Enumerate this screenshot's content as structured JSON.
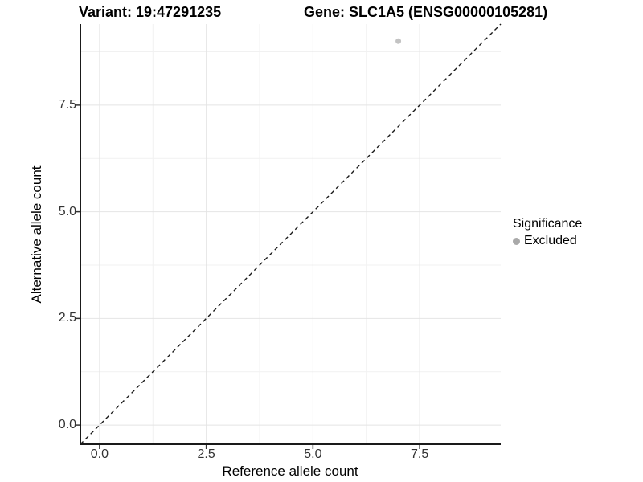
{
  "titles": {
    "variant": "Variant: 19:47291235",
    "gene": "Gene: SLC1A5 (ENSG00000105281)"
  },
  "axes": {
    "x": {
      "label": "Reference allele count"
    },
    "y": {
      "label": "Alternative allele count"
    }
  },
  "legend": {
    "title": "Significance",
    "items": [
      {
        "label": "Excluded",
        "color": "#a9a9a9"
      }
    ]
  },
  "chart_data": {
    "type": "scatter",
    "title": "Variant: 19:47291235 — Gene: SLC1A5 (ENSG00000105281)",
    "xlabel": "Reference allele count",
    "ylabel": "Alternative allele count",
    "xlim": [
      -0.45,
      9.4
    ],
    "ylim": [
      -0.45,
      9.4
    ],
    "xticks": [
      0.0,
      2.5,
      5.0,
      7.5
    ],
    "yticks": [
      0.0,
      2.5,
      5.0,
      7.5
    ],
    "xtick_labels": [
      "0.0",
      "2.5",
      "5.0",
      "7.5"
    ],
    "ytick_labels": [
      "0.0",
      "2.5",
      "5.0",
      "7.5"
    ],
    "x_minor_ticks": [
      1.25,
      3.75,
      6.25,
      8.75
    ],
    "y_minor_ticks": [
      1.25,
      3.75,
      6.25,
      8.75
    ],
    "grid": "major+minor",
    "legend_position": "right",
    "series": [
      {
        "name": "Excluded",
        "color": "#c3c3c3",
        "points": [
          {
            "x": 7,
            "y": 9
          }
        ]
      }
    ],
    "reference_line": {
      "type": "identity",
      "style": "dashed",
      "from": [
        -0.45,
        -0.45
      ],
      "to": [
        9.4,
        9.4
      ]
    },
    "style": {
      "axis_color": "#1a1a1a",
      "tick_color": "#333333",
      "grid_major_color": "#e4e4e4",
      "grid_minor_color": "#f1f1f1",
      "refline_color": "#1a1a1a",
      "background": "#ffffff"
    }
  }
}
